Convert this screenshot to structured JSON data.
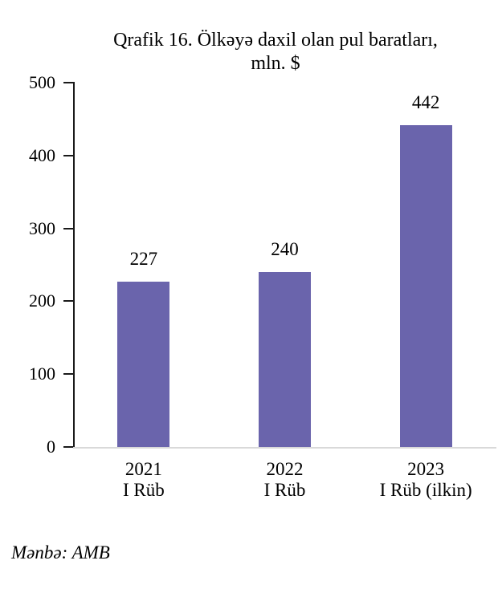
{
  "title": {
    "line1": "Qrafik 16. Ölkəyə daxil olan pul baratları,",
    "line2": "mln. $"
  },
  "source_note": "Mənbə: AMB",
  "colors": {
    "bar": "#6A64AC",
    "axis": "#1A1A1A",
    "baseline": "#D9D9D9",
    "text": "#000000"
  },
  "chart_data": {
    "type": "bar",
    "title": "Qrafik 16. Ölkəyə daxil olan pul baratları, mln. $",
    "categories": [
      [
        "2021",
        "I Rüb"
      ],
      [
        "2022",
        "I Rüb"
      ],
      [
        "2023",
        "I Rüb (ilkin)"
      ]
    ],
    "values": [
      227,
      240,
      442
    ],
    "value_labels": [
      "227",
      "240",
      "442"
    ],
    "xlabel": "",
    "ylabel": "",
    "ylim": [
      0,
      500
    ],
    "yticks": [
      0,
      100,
      200,
      300,
      400,
      500
    ],
    "grid": false,
    "legend": "none",
    "bar_color": "#6A64AC",
    "source": "Mənbə: AMB"
  }
}
